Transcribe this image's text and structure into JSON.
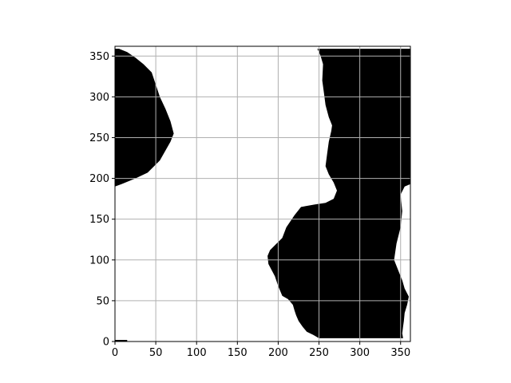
{
  "chart_data": {
    "type": "heatmap",
    "title": "",
    "xlabel": "",
    "ylabel": "",
    "xlim": [
      0,
      362
    ],
    "ylim": [
      0,
      362
    ],
    "grid": true,
    "colormap": [
      "#ffffff",
      "#000000"
    ],
    "x_ticks": [
      0,
      50,
      100,
      150,
      200,
      250,
      300,
      350
    ],
    "y_ticks": [
      0,
      50,
      100,
      150,
      200,
      250,
      300,
      350
    ],
    "x_tick_labels": [
      "0",
      "50",
      "100",
      "150",
      "200",
      "250",
      "300",
      "350"
    ],
    "y_tick_labels": [
      "0",
      "50",
      "100",
      "150",
      "200",
      "250",
      "300",
      "350"
    ],
    "regions": [
      {
        "name": "left-black-region",
        "value": 1,
        "polygon": [
          [
            0,
            190
          ],
          [
            8,
            193
          ],
          [
            25,
            200
          ],
          [
            40,
            207
          ],
          [
            55,
            222
          ],
          [
            68,
            245
          ],
          [
            72,
            255
          ],
          [
            68,
            270
          ],
          [
            62,
            285
          ],
          [
            55,
            300
          ],
          [
            50,
            315
          ],
          [
            45,
            330
          ],
          [
            35,
            340
          ],
          [
            25,
            348
          ],
          [
            15,
            355
          ],
          [
            5,
            359
          ],
          [
            0,
            359
          ]
        ]
      },
      {
        "name": "right-black-region",
        "value": 1,
        "polygon": [
          [
            248,
            359
          ],
          [
            356,
            359
          ],
          [
            362,
            359
          ],
          [
            362,
            193
          ],
          [
            355,
            190
          ],
          [
            350,
            180
          ],
          [
            352,
            160
          ],
          [
            350,
            140
          ],
          [
            345,
            120
          ],
          [
            342,
            100
          ],
          [
            348,
            85
          ],
          [
            352,
            75
          ],
          [
            355,
            65
          ],
          [
            360,
            55
          ],
          [
            358,
            45
          ],
          [
            355,
            35
          ],
          [
            354,
            25
          ],
          [
            353,
            18
          ],
          [
            352,
            10
          ],
          [
            353,
            4
          ],
          [
            250,
            4
          ],
          [
            243,
            8
          ],
          [
            235,
            12
          ],
          [
            230,
            18
          ],
          [
            225,
            25
          ],
          [
            222,
            32
          ],
          [
            220,
            38
          ],
          [
            218,
            45
          ],
          [
            212,
            52
          ],
          [
            205,
            56
          ],
          [
            200,
            68
          ],
          [
            196,
            80
          ],
          [
            188,
            95
          ],
          [
            187,
            105
          ],
          [
            190,
            112
          ],
          [
            198,
            120
          ],
          [
            205,
            127
          ],
          [
            210,
            140
          ],
          [
            220,
            155
          ],
          [
            228,
            165
          ],
          [
            245,
            168
          ],
          [
            258,
            170
          ],
          [
            268,
            175
          ],
          [
            272,
            185
          ],
          [
            268,
            195
          ],
          [
            262,
            205
          ],
          [
            258,
            215
          ],
          [
            260,
            230
          ],
          [
            262,
            245
          ],
          [
            265,
            258
          ],
          [
            266,
            265
          ],
          [
            262,
            275
          ],
          [
            258,
            290
          ],
          [
            256,
            305
          ],
          [
            254,
            320
          ],
          [
            255,
            340
          ],
          [
            252,
            350
          ]
        ]
      },
      {
        "name": "bottom-left-dots",
        "value": 1,
        "polygon": [
          [
            0,
            0
          ],
          [
            15,
            0
          ],
          [
            15,
            2
          ],
          [
            0,
            2
          ]
        ]
      }
    ]
  }
}
